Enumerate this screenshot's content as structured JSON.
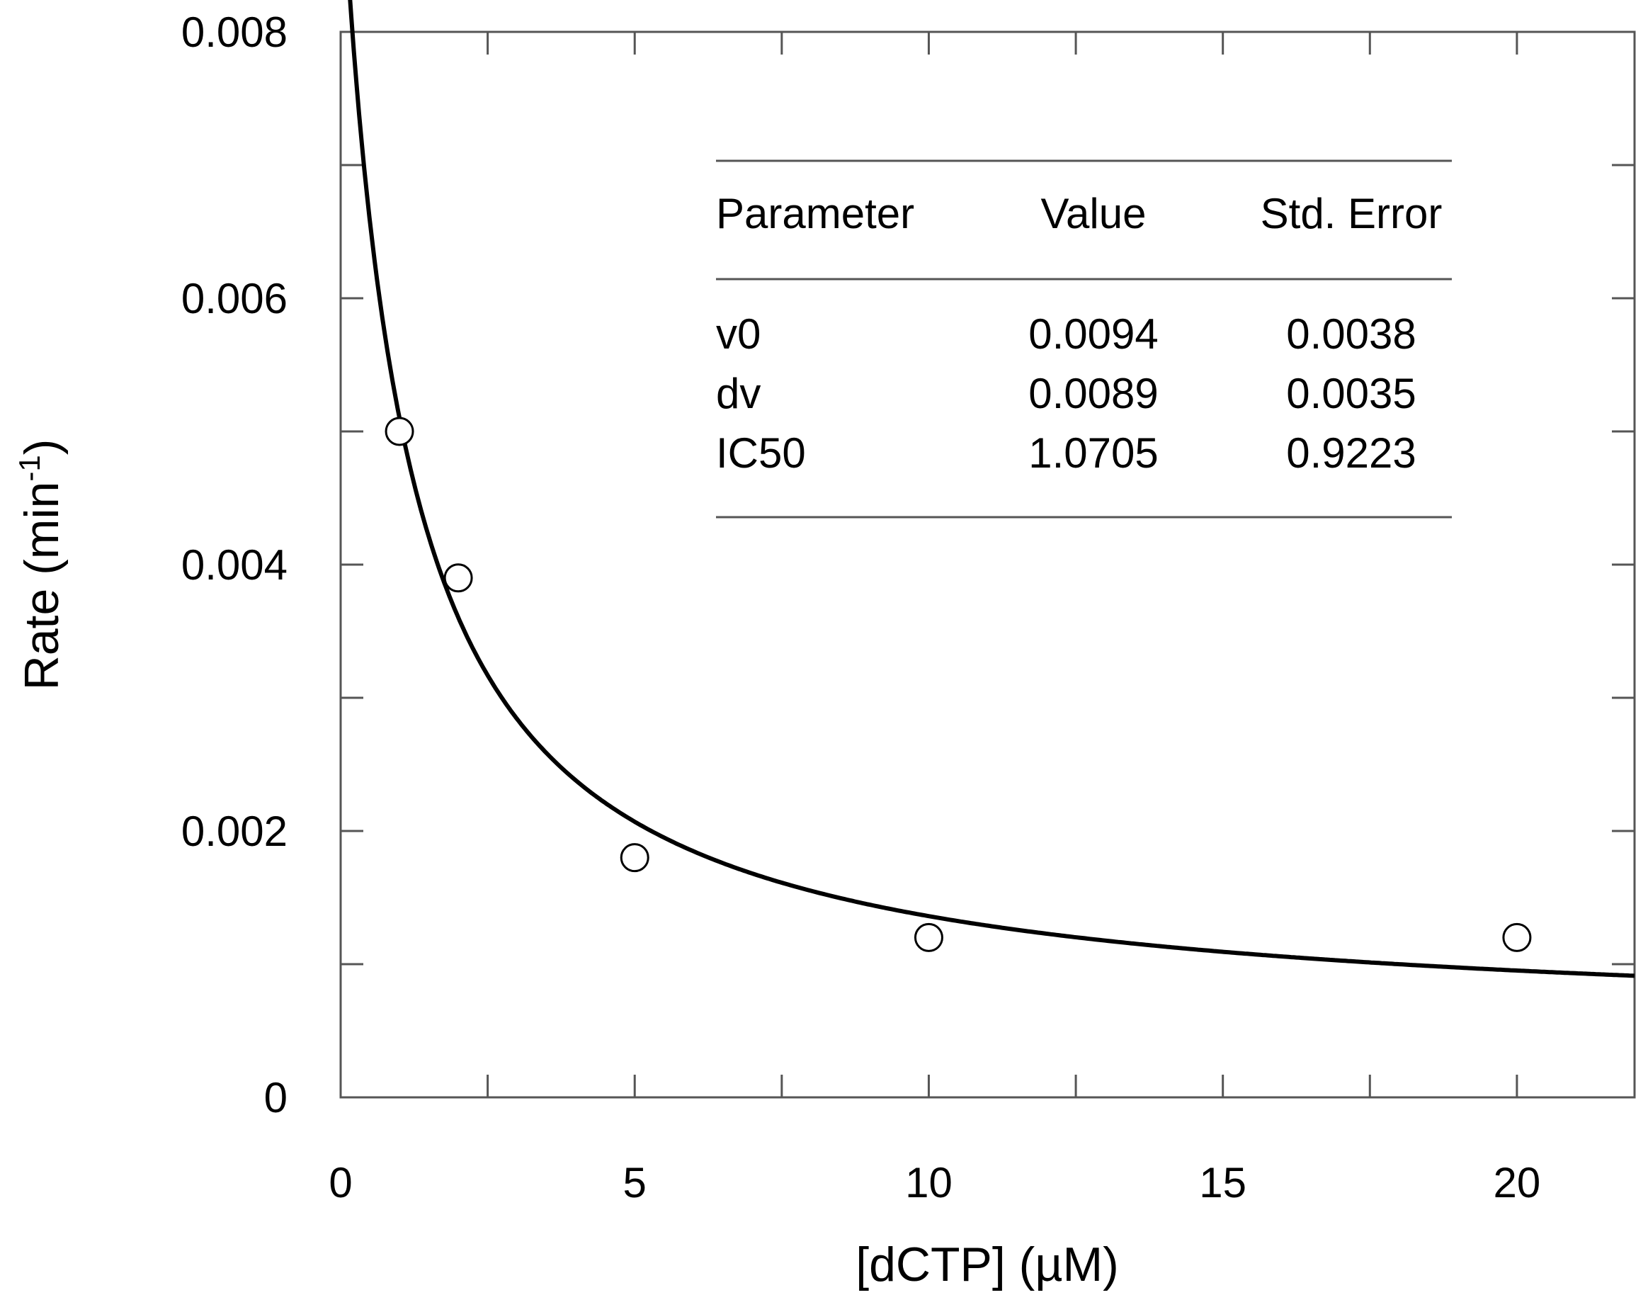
{
  "chart_data": {
    "type": "scatter",
    "xlabel": "[dCTP] (µM)",
    "ylabel": "Rate (min",
    "ylabel_sup": "-1",
    "ylabel_close": ")",
    "xlim": [
      0,
      22
    ],
    "ylim": [
      0,
      0.008
    ],
    "x_ticks": [
      0,
      5,
      10,
      15,
      20
    ],
    "x_tick_labels": [
      "0",
      "5",
      "10",
      "15",
      "20"
    ],
    "x_minor_ticks": [
      2.5,
      7.5,
      12.5,
      17.5
    ],
    "y_ticks": [
      0,
      0.002,
      0.004,
      0.006,
      0.008
    ],
    "y_tick_labels": [
      "0",
      "0.002",
      "0.004",
      "0.006",
      "0.008"
    ],
    "y_minor_ticks": [
      0.001,
      0.003,
      0.005,
      0.007
    ],
    "grid": false,
    "points": [
      {
        "x": 1,
        "y": 0.005
      },
      {
        "x": 2,
        "y": 0.0039
      },
      {
        "x": 5,
        "y": 0.0018
      },
      {
        "x": 10,
        "y": 0.0012
      },
      {
        "x": 20,
        "y": 0.0012
      }
    ],
    "fit": {
      "v0": 0.0094,
      "dv": 0.0089,
      "IC50": 1.0705
    },
    "param_table": {
      "headers": [
        "Parameter",
        "Value",
        "Std. Error"
      ],
      "rows": [
        [
          "v0",
          "0.0094",
          "0.0038"
        ],
        [
          "dv",
          "0.0089",
          "0.0035"
        ],
        [
          "IC50",
          "1.0705",
          "0.9223"
        ]
      ]
    }
  }
}
